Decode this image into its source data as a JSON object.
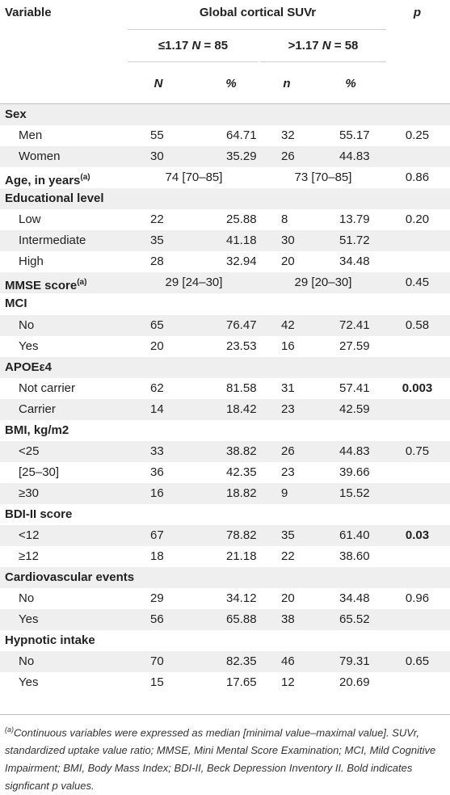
{
  "header": {
    "variable": "Variable",
    "global": "Global cortical SUVr",
    "p": "p",
    "group1_prefix": "≤1.17 ",
    "group1_n": "N",
    "group1_suffix": " = 85",
    "group2_prefix": ">1.17 ",
    "group2_n": "N",
    "group2_suffix": " = 58",
    "col_N": "N",
    "col_pct1": "%",
    "col_n": "n",
    "col_pct2": "%"
  },
  "rows": [
    {
      "type": "section",
      "label": "Sex"
    },
    {
      "type": "data",
      "label": "Men",
      "n1": "55",
      "p1": "64.71",
      "n2": "32",
      "p2": "55.17",
      "p": "0.25"
    },
    {
      "type": "data",
      "label": "Women",
      "n1": "30",
      "p1": "35.29",
      "n2": "26",
      "p2": "44.83",
      "p": ""
    },
    {
      "type": "median",
      "label": "Age, in years",
      "sup": "(a)",
      "m1": "74 [70–85]",
      "m2": "73 [70–85]",
      "p": "0.86"
    },
    {
      "type": "section",
      "label": "Educational level"
    },
    {
      "type": "data",
      "label": "Low",
      "n1": "22",
      "p1": "25.88",
      "n2": "8",
      "p2": "13.79",
      "p": "0.20"
    },
    {
      "type": "data",
      "label": "Intermediate",
      "n1": "35",
      "p1": "41.18",
      "n2": "30",
      "p2": "51.72",
      "p": ""
    },
    {
      "type": "data",
      "label": "High",
      "n1": "28",
      "p1": "32.94",
      "n2": "20",
      "p2": "34.48",
      "p": ""
    },
    {
      "type": "median",
      "label": "MMSE score",
      "sup": "(a)",
      "m1": "29 [24–30]",
      "m2": "29 [20–30]",
      "p": "0.45"
    },
    {
      "type": "section",
      "label": "MCI"
    },
    {
      "type": "data",
      "label": "No",
      "n1": "65",
      "p1": "76.47",
      "n2": "42",
      "p2": "72.41",
      "p": "0.58"
    },
    {
      "type": "data",
      "label": "Yes",
      "n1": "20",
      "p1": "23.53",
      "n2": "16",
      "p2": "27.59",
      "p": ""
    },
    {
      "type": "section",
      "label": "APOEε4"
    },
    {
      "type": "data",
      "label": "Not carrier",
      "n1": "62",
      "p1": "81.58",
      "n2": "31",
      "p2": "57.41",
      "p": "0.003",
      "bold": true
    },
    {
      "type": "data",
      "label": "Carrier",
      "n1": "14",
      "p1": "18.42",
      "n2": "23",
      "p2": "42.59",
      "p": ""
    },
    {
      "type": "section",
      "label": "BMI, kg/m2"
    },
    {
      "type": "data",
      "label": "<25",
      "n1": "33",
      "p1": "38.82",
      "n2": "26",
      "p2": "44.83",
      "p": "0.75"
    },
    {
      "type": "data",
      "label": "[25–30]",
      "n1": "36",
      "p1": "42.35",
      "n2": "23",
      "p2": "39.66",
      "p": ""
    },
    {
      "type": "data",
      "label": "≥30",
      "n1": "16",
      "p1": "18.82",
      "n2": "9",
      "p2": "15.52",
      "p": ""
    },
    {
      "type": "section",
      "label": "BDI-II score"
    },
    {
      "type": "data",
      "label": "<12",
      "n1": "67",
      "p1": "78.82",
      "n2": "35",
      "p2": "61.40",
      "p": "0.03",
      "bold": true
    },
    {
      "type": "data",
      "label": "≥12",
      "n1": "18",
      "p1": "21.18",
      "n2": "22",
      "p2": "38.60",
      "p": ""
    },
    {
      "type": "section",
      "label": "Cardiovascular events"
    },
    {
      "type": "data",
      "label": "No",
      "n1": "29",
      "p1": "34.12",
      "n2": "20",
      "p2": "34.48",
      "p": "0.96"
    },
    {
      "type": "data",
      "label": "Yes",
      "n1": "56",
      "p1": "65.88",
      "n2": "38",
      "p2": "65.52",
      "p": ""
    },
    {
      "type": "section",
      "label": "Hypnotic intake"
    },
    {
      "type": "data",
      "label": "No",
      "n1": "70",
      "p1": "82.35",
      "n2": "46",
      "p2": "79.31",
      "p": "0.65"
    },
    {
      "type": "data",
      "label": "Yes",
      "n1": "15",
      "p1": "17.65",
      "n2": "12",
      "p2": "20.69",
      "p": ""
    }
  ],
  "footnote": {
    "sup": "(a)",
    "text": "Continuous variables were expressed as median [minimal value–maximal value]. SUVr, standardized uptake value ratio; MMSE, Mini Mental Score Examination; MCI, Mild Cognitive Impairment; BMI, Body Mass Index; BDI-II, Beck Depression Inventory II. Bold indicates signficant p values."
  }
}
